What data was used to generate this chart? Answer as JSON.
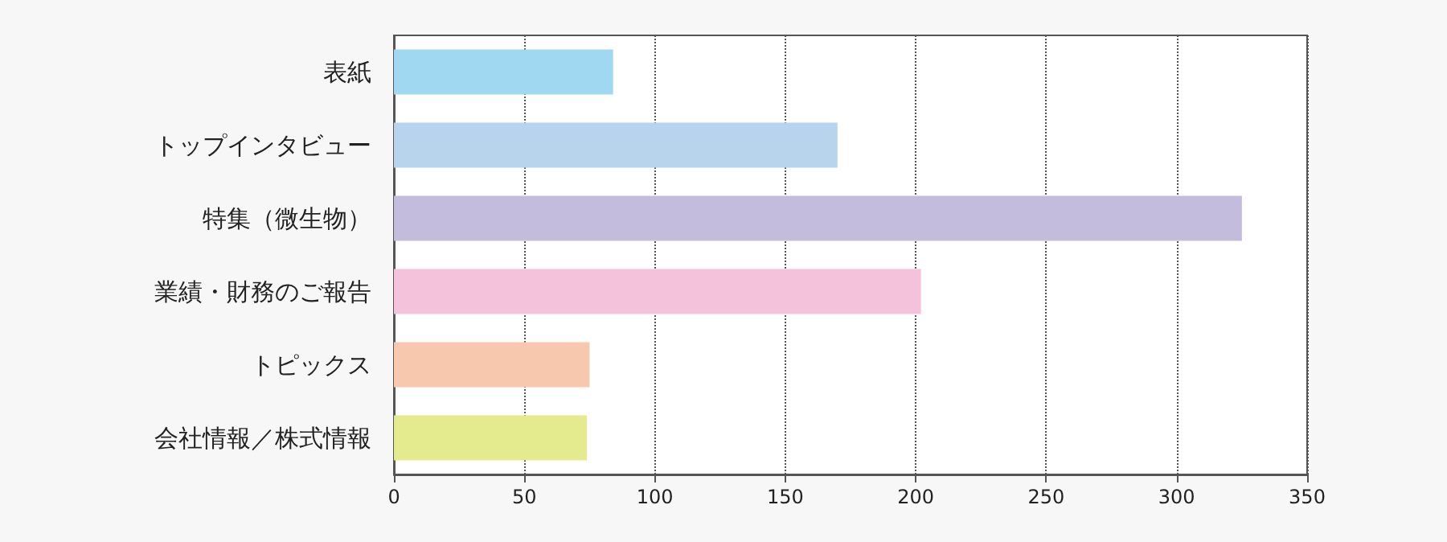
{
  "chart_data": {
    "type": "bar",
    "orientation": "horizontal",
    "categories": [
      "表紙",
      "トップインタビュー",
      "特集（微生物）",
      "業績・財務のご報告",
      "トピックス",
      "会社情報／株式情報"
    ],
    "values": [
      84,
      170,
      325,
      202,
      75,
      74
    ],
    "colors": [
      "#a0d8f2",
      "#b8d4ec",
      "#c4bcdc",
      "#f4c2da",
      "#f8c8ae",
      "#e4ea8e"
    ],
    "xlim": [
      0,
      350
    ],
    "xticks": [
      0,
      50,
      100,
      150,
      200,
      250,
      300,
      350
    ],
    "grid": "x"
  }
}
